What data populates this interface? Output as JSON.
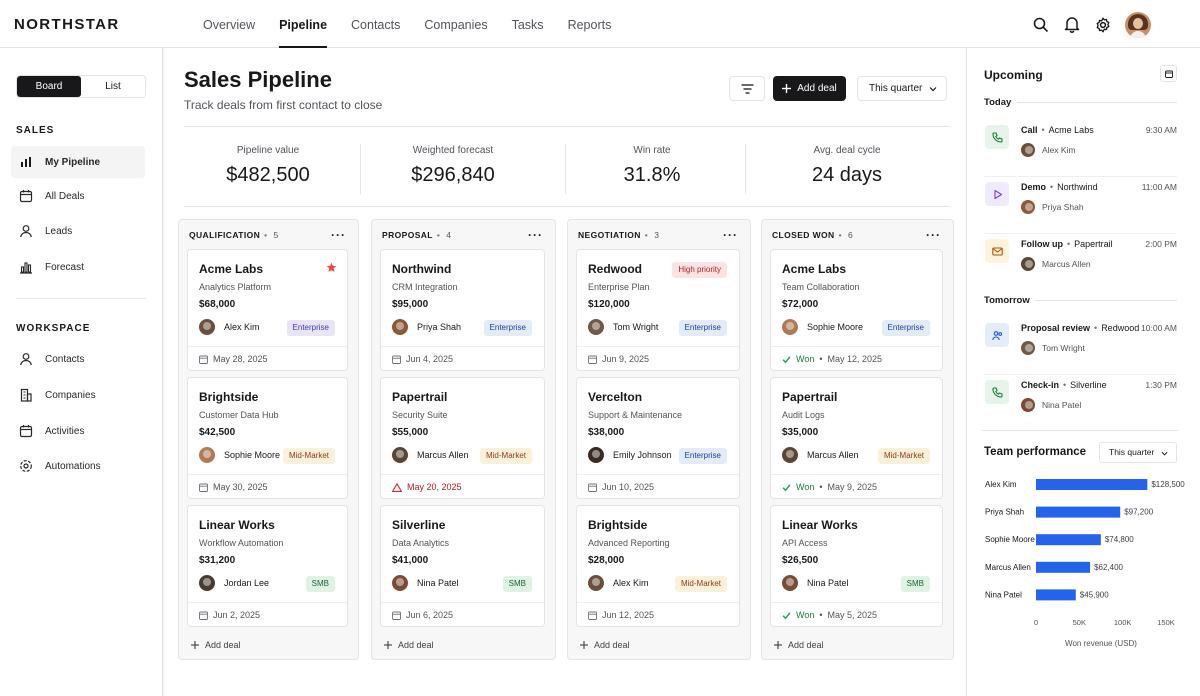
{
  "app": {
    "logo": "NORTHSTAR",
    "nav": [
      "Overview",
      "Pipeline",
      "Contacts",
      "Companies",
      "Tasks",
      "Reports"
    ],
    "active_nav": "Pipeline"
  },
  "sidebar": {
    "view_toggle": [
      "Board",
      "List"
    ],
    "sales_heading": "SALES",
    "sales_items": [
      "My Pipeline",
      "All Deals",
      "Leads",
      "Forecast"
    ],
    "workspace_heading": "WORKSPACE",
    "workspace_items": [
      "Contacts",
      "Companies",
      "Activities",
      "Automations"
    ]
  },
  "header": {
    "title": "Sales Pipeline",
    "subtitle": "Track deals from first contact to close",
    "add_deal_label": "Add deal",
    "period_label": "This quarter"
  },
  "kpis": [
    {
      "label": "Pipeline value",
      "value": "$482,500"
    },
    {
      "label": "Weighted forecast",
      "value": "$296,840"
    },
    {
      "label": "Win rate",
      "value": "31.8%"
    },
    {
      "label": "Avg. deal cycle",
      "value": "24 days"
    }
  ],
  "columns": [
    {
      "name": "QUALIFICATION",
      "count": "5",
      "cards": [
        {
          "title": "Acme Labs",
          "subtitle": "Analytics Platform",
          "value": "$68,000",
          "owner": "Alex Kim",
          "tier": "Enterprise",
          "date": "May 28, 2025",
          "starred": true
        },
        {
          "title": "Brightside",
          "subtitle": "Customer Data Hub",
          "value": "$42,500",
          "owner": "Sophie Moore",
          "tier": "Mid-Market",
          "date": "May 30, 2025"
        },
        {
          "title": "Linear Works",
          "subtitle": "Workflow Automation",
          "value": "$31,200",
          "owner": "Jordan Lee",
          "tier": "SMB",
          "date": "Jun 2, 2025"
        }
      ],
      "add_label": "Add deal"
    },
    {
      "name": "PROPOSAL",
      "count": "4",
      "cards": [
        {
          "title": "Northwind",
          "subtitle": "CRM Integration",
          "value": "$95,000",
          "owner": "Priya Shah",
          "tier": "Enterprise",
          "date": "Jun 4, 2025"
        },
        {
          "title": "Papertrail",
          "subtitle": "Security Suite",
          "value": "$55,000",
          "owner": "Marcus Allen",
          "tier": "Mid-Market",
          "date": "May 20, 2025",
          "overdue": true
        },
        {
          "title": "Silverline",
          "subtitle": "Data Analytics",
          "value": "$41,000",
          "owner": "Nina Patel",
          "tier": "SMB",
          "date": "Jun 6, 2025"
        }
      ],
      "add_label": "Add deal"
    },
    {
      "name": "NEGOTIATION",
      "count": "3",
      "cards": [
        {
          "title": "Redwood",
          "subtitle": "Enterprise Plan",
          "value": "$120,000",
          "owner": "Tom Wright",
          "tier": "Enterprise",
          "date": "Jun 9, 2025",
          "flag": "High priority"
        },
        {
          "title": "Vercelton",
          "subtitle": "Support & Maintenance",
          "value": "$38,000",
          "owner": "Emily Johnson",
          "tier": "Enterprise",
          "date": "Jun 10, 2025"
        },
        {
          "title": "Brightside",
          "subtitle": "Advanced Reporting",
          "value": "$28,000",
          "owner": "Alex Kim",
          "tier": "Mid-Market",
          "date": "Jun 12, 2025"
        }
      ],
      "add_label": "Add deal"
    },
    {
      "name": "CLOSED WON",
      "count": "6",
      "cards": [
        {
          "title": "Acme Labs",
          "subtitle": "Team Collaboration",
          "value": "$72,000",
          "owner": "Sophie Moore",
          "tier": "Enterprise",
          "won": "Won",
          "date": "May 12, 2025"
        },
        {
          "title": "Papertrail",
          "subtitle": "Audit Logs",
          "value": "$35,000",
          "owner": "Marcus Allen",
          "tier": "Mid-Market",
          "won": "Won",
          "date": "May 9, 2025"
        },
        {
          "title": "Linear Works",
          "subtitle": "API Access",
          "value": "$26,500",
          "owner": "Nina Patel",
          "tier": "SMB",
          "won": "Won",
          "date": "May 5, 2025"
        }
      ],
      "add_label": "Add deal"
    }
  ],
  "upcoming": {
    "title": "Upcoming",
    "today_label": "Today",
    "tomorrow_label": "Tomorrow",
    "today": [
      {
        "type": "Call",
        "company": "Acme Labs",
        "time": "9:30 AM",
        "person": "Alex Kim",
        "icon": "phone-icon"
      },
      {
        "type": "Demo",
        "company": "Northwind",
        "time": "11:00 AM",
        "person": "Priya Shah",
        "icon": "play-icon"
      },
      {
        "type": "Follow up",
        "company": "Papertrail",
        "time": "2:00 PM",
        "person": "Marcus Allen",
        "icon": "mail-icon"
      }
    ],
    "tomorrow": [
      {
        "type": "Proposal review",
        "company": "Redwood",
        "time": "10:00 AM",
        "person": "Tom Wright",
        "icon": "users-icon"
      },
      {
        "type": "Check-in",
        "company": "Silverline",
        "time": "1:30 PM",
        "person": "Nina Patel",
        "icon": "phone-icon"
      }
    ]
  },
  "team_performance": {
    "title": "Team performance",
    "period_label": "This quarter"
  },
  "chart_data": {
    "type": "bar",
    "orientation": "horizontal",
    "categories": [
      "Alex Kim",
      "Priya Shah",
      "Sophie Moore",
      "Marcus Allen",
      "Nina Patel"
    ],
    "values": [
      128500,
      97200,
      74800,
      62400,
      45900
    ],
    "value_labels": [
      "$128,500",
      "$97,200",
      "$74,800",
      "$62,400",
      "$45,900"
    ],
    "xlim": [
      0,
      150000
    ],
    "xticks": [
      "0",
      "50K",
      "100K",
      "150K"
    ],
    "xlabel": "Won revenue (USD)",
    "bar_color": "#2563eb",
    "grid": false
  },
  "colors": {
    "accent": "#18181b",
    "bar": "#2563eb",
    "star": "#ef4444"
  }
}
